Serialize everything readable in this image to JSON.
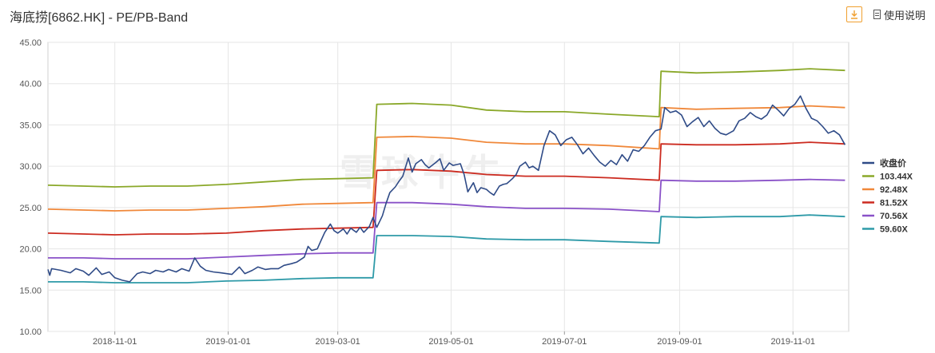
{
  "header": {
    "title": "海底捞[6862.HK] - PE/PB-Band",
    "help_label": "使用说明"
  },
  "watermark": "雪球牛牛",
  "colors": {
    "close": "#2f4b87",
    "b1": "#8aa829",
    "b2": "#f0883a",
    "b3": "#cc2b20",
    "b4": "#8a52c8",
    "b5": "#2e9aa8",
    "accent": "#f0a030"
  },
  "chart_data": {
    "type": "line",
    "title": "海底捞[6862.HK] - PE/PB-Band",
    "ylim": [
      10,
      45
    ],
    "yticks": [
      "10.00",
      "15.00",
      "20.00",
      "25.00",
      "30.00",
      "35.00",
      "40.00",
      "45.00"
    ],
    "xlim": [
      "2018-09-26",
      "2019-12-01"
    ],
    "xticks": [
      "2018-11-01",
      "2019-01-01",
      "2019-03-01",
      "2019-05-01",
      "2019-07-01",
      "2019-09-01",
      "2019-11-01"
    ],
    "grid": true,
    "legend_position": "right",
    "series": [
      {
        "name": "收盘价",
        "points": [
          [
            "2018-09-26",
            17.5
          ],
          [
            "2018-09-27",
            16.8
          ],
          [
            "2018-09-28",
            17.6
          ],
          [
            "2018-10-03",
            17.4
          ],
          [
            "2018-10-08",
            17.1
          ],
          [
            "2018-10-11",
            17.6
          ],
          [
            "2018-10-15",
            17.3
          ],
          [
            "2018-10-18",
            16.8
          ],
          [
            "2018-10-22",
            17.7
          ],
          [
            "2018-10-25",
            16.9
          ],
          [
            "2018-10-29",
            17.2
          ],
          [
            "2018-11-01",
            16.5
          ],
          [
            "2018-11-05",
            16.2
          ],
          [
            "2018-11-09",
            16.0
          ],
          [
            "2018-11-13",
            17.0
          ],
          [
            "2018-11-16",
            17.2
          ],
          [
            "2018-11-20",
            17.0
          ],
          [
            "2018-11-23",
            17.4
          ],
          [
            "2018-11-27",
            17.2
          ],
          [
            "2018-11-30",
            17.5
          ],
          [
            "2018-12-04",
            17.2
          ],
          [
            "2018-12-07",
            17.6
          ],
          [
            "2018-12-11",
            17.3
          ],
          [
            "2018-12-14",
            18.9
          ],
          [
            "2018-12-17",
            17.9
          ],
          [
            "2018-12-20",
            17.4
          ],
          [
            "2018-12-24",
            17.2
          ],
          [
            "2018-12-28",
            17.1
          ],
          [
            "2019-01-03",
            16.9
          ],
          [
            "2019-01-07",
            17.8
          ],
          [
            "2019-01-10",
            17.0
          ],
          [
            "2019-01-14",
            17.4
          ],
          [
            "2019-01-17",
            17.8
          ],
          [
            "2019-01-21",
            17.5
          ],
          [
            "2019-01-24",
            17.6
          ],
          [
            "2019-01-28",
            17.6
          ],
          [
            "2019-01-31",
            18.0
          ],
          [
            "2019-02-04",
            18.2
          ],
          [
            "2019-02-07",
            18.4
          ],
          [
            "2019-02-11",
            19.0
          ],
          [
            "2019-02-13",
            20.3
          ],
          [
            "2019-02-15",
            19.8
          ],
          [
            "2019-02-18",
            20.0
          ],
          [
            "2019-02-20",
            21.0
          ],
          [
            "2019-02-22",
            22.0
          ],
          [
            "2019-02-25",
            23.0
          ],
          [
            "2019-02-27",
            22.2
          ],
          [
            "2019-03-01",
            21.9
          ],
          [
            "2019-03-04",
            22.4
          ],
          [
            "2019-03-06",
            21.8
          ],
          [
            "2019-03-08",
            22.5
          ],
          [
            "2019-03-11",
            22.0
          ],
          [
            "2019-03-13",
            22.6
          ],
          [
            "2019-03-15",
            22.0
          ],
          [
            "2019-03-18",
            22.7
          ],
          [
            "2019-03-20",
            23.8
          ],
          [
            "2019-03-22",
            22.6
          ],
          [
            "2019-03-25",
            24.0
          ],
          [
            "2019-03-27",
            25.5
          ],
          [
            "2019-03-29",
            26.8
          ],
          [
            "2019-04-01",
            27.5
          ],
          [
            "2019-04-03",
            28.2
          ],
          [
            "2019-04-05",
            28.8
          ],
          [
            "2019-04-08",
            31.0
          ],
          [
            "2019-04-10",
            29.3
          ],
          [
            "2019-04-12",
            30.3
          ],
          [
            "2019-04-15",
            30.8
          ],
          [
            "2019-04-17",
            30.2
          ],
          [
            "2019-04-19",
            29.8
          ],
          [
            "2019-04-23",
            30.5
          ],
          [
            "2019-04-25",
            30.9
          ],
          [
            "2019-04-27",
            29.5
          ],
          [
            "2019-04-30",
            30.4
          ],
          [
            "2019-05-02",
            30.1
          ],
          [
            "2019-05-06",
            30.3
          ],
          [
            "2019-05-08",
            29.0
          ],
          [
            "2019-05-10",
            26.9
          ],
          [
            "2019-05-13",
            28.0
          ],
          [
            "2019-05-15",
            26.8
          ],
          [
            "2019-05-17",
            27.4
          ],
          [
            "2019-05-20",
            27.2
          ],
          [
            "2019-05-22",
            26.8
          ],
          [
            "2019-05-24",
            26.5
          ],
          [
            "2019-05-27",
            27.6
          ],
          [
            "2019-05-29",
            27.8
          ],
          [
            "2019-05-31",
            27.9
          ],
          [
            "2019-06-03",
            28.5
          ],
          [
            "2019-06-05",
            29.0
          ],
          [
            "2019-06-07",
            30.0
          ],
          [
            "2019-06-10",
            30.5
          ],
          [
            "2019-06-12",
            29.8
          ],
          [
            "2019-06-14",
            30.0
          ],
          [
            "2019-06-17",
            29.5
          ],
          [
            "2019-06-20",
            32.5
          ],
          [
            "2019-06-23",
            34.3
          ],
          [
            "2019-06-26",
            33.8
          ],
          [
            "2019-06-29",
            32.5
          ],
          [
            "2019-07-02",
            33.2
          ],
          [
            "2019-07-05",
            33.5
          ],
          [
            "2019-07-08",
            32.6
          ],
          [
            "2019-07-11",
            31.5
          ],
          [
            "2019-07-14",
            32.2
          ],
          [
            "2019-07-17",
            31.3
          ],
          [
            "2019-07-20",
            30.5
          ],
          [
            "2019-07-23",
            30.0
          ],
          [
            "2019-07-26",
            30.7
          ],
          [
            "2019-07-29",
            30.2
          ],
          [
            "2019-08-01",
            31.4
          ],
          [
            "2019-08-04",
            30.6
          ],
          [
            "2019-08-07",
            32.0
          ],
          [
            "2019-08-10",
            31.8
          ],
          [
            "2019-08-13",
            32.5
          ],
          [
            "2019-08-16",
            33.5
          ],
          [
            "2019-08-19",
            34.3
          ],
          [
            "2019-08-22",
            34.5
          ],
          [
            "2019-08-24",
            37.1
          ],
          [
            "2019-08-27",
            36.5
          ],
          [
            "2019-08-30",
            36.7
          ],
          [
            "2019-09-02",
            36.2
          ],
          [
            "2019-09-05",
            34.8
          ],
          [
            "2019-09-08",
            35.4
          ],
          [
            "2019-09-11",
            35.9
          ],
          [
            "2019-09-14",
            34.8
          ],
          [
            "2019-09-17",
            35.5
          ],
          [
            "2019-09-20",
            34.6
          ],
          [
            "2019-09-23",
            34.0
          ],
          [
            "2019-09-26",
            33.8
          ],
          [
            "2019-09-30",
            34.3
          ],
          [
            "2019-10-03",
            35.5
          ],
          [
            "2019-10-06",
            35.8
          ],
          [
            "2019-10-09",
            36.5
          ],
          [
            "2019-10-12",
            36.0
          ],
          [
            "2019-10-15",
            35.7
          ],
          [
            "2019-10-18",
            36.2
          ],
          [
            "2019-10-21",
            37.4
          ],
          [
            "2019-10-24",
            36.8
          ],
          [
            "2019-10-27",
            36.1
          ],
          [
            "2019-10-30",
            37.0
          ],
          [
            "2019-11-02",
            37.5
          ],
          [
            "2019-11-05",
            38.5
          ],
          [
            "2019-11-08",
            37.0
          ],
          [
            "2019-11-11",
            35.8
          ],
          [
            "2019-11-14",
            35.5
          ],
          [
            "2019-11-17",
            34.8
          ],
          [
            "2019-11-20",
            34.0
          ],
          [
            "2019-11-23",
            34.3
          ],
          [
            "2019-11-26",
            33.8
          ],
          [
            "2019-11-29",
            32.6
          ]
        ]
      },
      {
        "name": "103.44X",
        "points": [
          [
            "2018-09-26",
            27.7
          ],
          [
            "2018-10-15",
            27.6
          ],
          [
            "2018-11-01",
            27.5
          ],
          [
            "2018-11-20",
            27.6
          ],
          [
            "2018-12-10",
            27.6
          ],
          [
            "2018-12-31",
            27.8
          ],
          [
            "2019-01-20",
            28.1
          ],
          [
            "2019-02-10",
            28.4
          ],
          [
            "2019-03-01",
            28.5
          ],
          [
            "2019-03-20",
            28.6
          ],
          [
            "2019-03-22",
            37.5
          ],
          [
            "2019-04-10",
            37.6
          ],
          [
            "2019-05-01",
            37.4
          ],
          [
            "2019-05-20",
            36.8
          ],
          [
            "2019-06-10",
            36.6
          ],
          [
            "2019-07-01",
            36.6
          ],
          [
            "2019-07-25",
            36.3
          ],
          [
            "2019-08-21",
            36.0
          ],
          [
            "2019-08-22",
            41.5
          ],
          [
            "2019-09-10",
            41.3
          ],
          [
            "2019-10-01",
            41.4
          ],
          [
            "2019-10-25",
            41.6
          ],
          [
            "2019-11-10",
            41.8
          ],
          [
            "2019-11-29",
            41.6
          ]
        ]
      },
      {
        "name": "92.48X",
        "points": [
          [
            "2018-09-26",
            24.8
          ],
          [
            "2018-10-15",
            24.7
          ],
          [
            "2018-11-01",
            24.6
          ],
          [
            "2018-11-20",
            24.7
          ],
          [
            "2018-12-10",
            24.7
          ],
          [
            "2018-12-31",
            24.9
          ],
          [
            "2019-01-20",
            25.1
          ],
          [
            "2019-02-10",
            25.4
          ],
          [
            "2019-03-01",
            25.5
          ],
          [
            "2019-03-20",
            25.6
          ],
          [
            "2019-03-22",
            33.5
          ],
          [
            "2019-04-10",
            33.6
          ],
          [
            "2019-05-01",
            33.4
          ],
          [
            "2019-05-20",
            32.9
          ],
          [
            "2019-06-10",
            32.7
          ],
          [
            "2019-07-01",
            32.7
          ],
          [
            "2019-07-25",
            32.5
          ],
          [
            "2019-08-21",
            32.1
          ],
          [
            "2019-08-22",
            37.1
          ],
          [
            "2019-09-10",
            36.9
          ],
          [
            "2019-10-01",
            37.0
          ],
          [
            "2019-10-25",
            37.1
          ],
          [
            "2019-11-10",
            37.3
          ],
          [
            "2019-11-29",
            37.1
          ]
        ]
      },
      {
        "name": "81.52X",
        "points": [
          [
            "2018-09-26",
            21.9
          ],
          [
            "2018-10-15",
            21.8
          ],
          [
            "2018-11-01",
            21.7
          ],
          [
            "2018-11-20",
            21.8
          ],
          [
            "2018-12-10",
            21.8
          ],
          [
            "2018-12-31",
            21.9
          ],
          [
            "2019-01-20",
            22.2
          ],
          [
            "2019-02-10",
            22.4
          ],
          [
            "2019-03-01",
            22.5
          ],
          [
            "2019-03-20",
            22.6
          ],
          [
            "2019-03-22",
            29.5
          ],
          [
            "2019-04-10",
            29.6
          ],
          [
            "2019-05-01",
            29.4
          ],
          [
            "2019-05-20",
            29.0
          ],
          [
            "2019-06-10",
            28.8
          ],
          [
            "2019-07-01",
            28.8
          ],
          [
            "2019-07-25",
            28.6
          ],
          [
            "2019-08-21",
            28.3
          ],
          [
            "2019-08-22",
            32.7
          ],
          [
            "2019-09-10",
            32.6
          ],
          [
            "2019-10-01",
            32.6
          ],
          [
            "2019-10-25",
            32.7
          ],
          [
            "2019-11-10",
            32.9
          ],
          [
            "2019-11-29",
            32.7
          ]
        ]
      },
      {
        "name": "70.56X",
        "points": [
          [
            "2018-09-26",
            18.9
          ],
          [
            "2018-10-15",
            18.9
          ],
          [
            "2018-11-01",
            18.8
          ],
          [
            "2018-11-20",
            18.8
          ],
          [
            "2018-12-10",
            18.8
          ],
          [
            "2018-12-31",
            19.0
          ],
          [
            "2019-01-20",
            19.2
          ],
          [
            "2019-02-10",
            19.4
          ],
          [
            "2019-03-01",
            19.5
          ],
          [
            "2019-03-20",
            19.5
          ],
          [
            "2019-03-22",
            25.6
          ],
          [
            "2019-04-10",
            25.6
          ],
          [
            "2019-05-01",
            25.4
          ],
          [
            "2019-05-20",
            25.1
          ],
          [
            "2019-06-10",
            24.9
          ],
          [
            "2019-07-01",
            24.9
          ],
          [
            "2019-07-25",
            24.8
          ],
          [
            "2019-08-21",
            24.5
          ],
          [
            "2019-08-22",
            28.3
          ],
          [
            "2019-09-10",
            28.2
          ],
          [
            "2019-10-01",
            28.2
          ],
          [
            "2019-10-25",
            28.3
          ],
          [
            "2019-11-10",
            28.4
          ],
          [
            "2019-11-29",
            28.3
          ]
        ]
      },
      {
        "name": "59.60X",
        "points": [
          [
            "2018-09-26",
            16.0
          ],
          [
            "2018-10-15",
            16.0
          ],
          [
            "2018-11-01",
            15.9
          ],
          [
            "2018-11-20",
            15.9
          ],
          [
            "2018-12-10",
            15.9
          ],
          [
            "2018-12-31",
            16.1
          ],
          [
            "2019-01-20",
            16.2
          ],
          [
            "2019-02-10",
            16.4
          ],
          [
            "2019-03-01",
            16.5
          ],
          [
            "2019-03-20",
            16.5
          ],
          [
            "2019-03-22",
            21.6
          ],
          [
            "2019-04-10",
            21.6
          ],
          [
            "2019-05-01",
            21.5
          ],
          [
            "2019-05-20",
            21.2
          ],
          [
            "2019-06-10",
            21.1
          ],
          [
            "2019-07-01",
            21.1
          ],
          [
            "2019-07-25",
            20.9
          ],
          [
            "2019-08-21",
            20.7
          ],
          [
            "2019-08-22",
            23.9
          ],
          [
            "2019-09-10",
            23.8
          ],
          [
            "2019-10-01",
            23.9
          ],
          [
            "2019-10-25",
            23.9
          ],
          [
            "2019-11-10",
            24.1
          ],
          [
            "2019-11-29",
            23.9
          ]
        ]
      }
    ]
  }
}
